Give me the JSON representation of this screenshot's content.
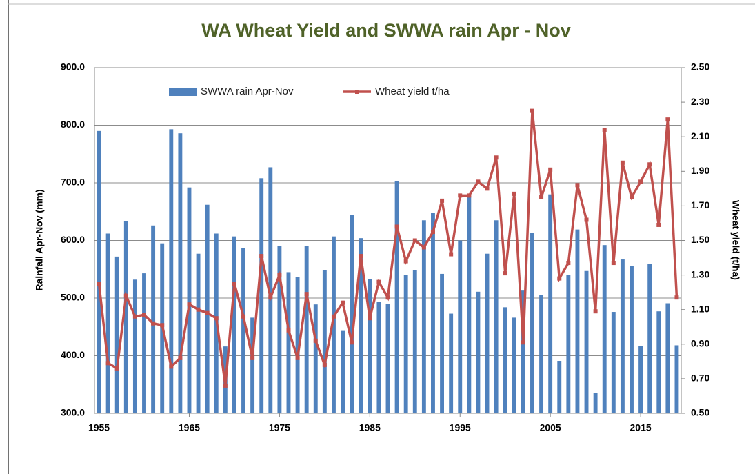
{
  "chart_data": {
    "type": "bar_line",
    "title": "WA Wheat Yield and SWWA rain Apr - Nov",
    "y_label": "Rainfall Apr-Nov (mm)",
    "y2_label": "Wheat yield (t/ha)",
    "x": [
      1955,
      1956,
      1957,
      1958,
      1959,
      1960,
      1961,
      1962,
      1963,
      1964,
      1965,
      1966,
      1967,
      1968,
      1969,
      1970,
      1971,
      1972,
      1973,
      1974,
      1975,
      1976,
      1977,
      1978,
      1979,
      1980,
      1981,
      1982,
      1983,
      1984,
      1985,
      1986,
      1987,
      1988,
      1989,
      1990,
      1991,
      1992,
      1993,
      1994,
      1995,
      1996,
      1997,
      1998,
      1999,
      2000,
      2001,
      2002,
      2003,
      2004,
      2005,
      2006,
      2007,
      2008,
      2009,
      2010,
      2011,
      2012,
      2013,
      2014,
      2015,
      2016,
      2017,
      2018,
      2019
    ],
    "xlim": [
      1954.5,
      2019.5
    ],
    "xticks": [
      1955,
      1965,
      1975,
      1985,
      1995,
      2005,
      2015
    ],
    "ylim": [
      300,
      900
    ],
    "yticks": [
      {
        "value": 300,
        "label": "300.0"
      },
      {
        "value": 400,
        "label": "400.0"
      },
      {
        "value": 500,
        "label": "500.0"
      },
      {
        "value": 600,
        "label": "600.0"
      },
      {
        "value": 700,
        "label": "700.0"
      },
      {
        "value": 800,
        "label": "800.0"
      },
      {
        "value": 900,
        "label": "900.0"
      }
    ],
    "y2lim": [
      0.5,
      2.5
    ],
    "y2ticks": [
      {
        "value": 0.5,
        "label": "0.50"
      },
      {
        "value": 0.7,
        "label": "0.70"
      },
      {
        "value": 0.9,
        "label": "0.90"
      },
      {
        "value": 1.1,
        "label": "1.10"
      },
      {
        "value": 1.3,
        "label": "1.30"
      },
      {
        "value": 1.5,
        "label": "1.50"
      },
      {
        "value": 1.7,
        "label": "1.70"
      },
      {
        "value": 1.9,
        "label": "1.90"
      },
      {
        "value": 2.1,
        "label": "2.10"
      },
      {
        "value": 2.3,
        "label": "2.30"
      },
      {
        "value": 2.5,
        "label": "2.50"
      }
    ],
    "grid": true,
    "legend": "top",
    "series": [
      {
        "name": "SWWA rain Apr-Nov",
        "type": "bar",
        "color": "#4f81bd",
        "values": [
          790,
          612,
          572,
          633,
          532,
          543,
          626,
          595,
          793,
          786,
          692,
          577,
          662,
          612,
          416,
          607,
          587,
          466,
          708,
          727,
          590,
          545,
          537,
          591,
          489,
          549,
          607,
          443,
          644,
          604,
          533,
          493,
          490,
          703,
          540,
          548,
          635,
          648,
          542,
          473,
          600,
          678,
          511,
          577,
          635,
          484,
          466,
          513,
          613,
          505,
          680,
          391,
          540,
          619,
          547,
          335,
          592,
          476,
          567,
          556,
          417,
          559,
          477,
          491,
          418
        ]
      },
      {
        "name": "Wheat yield t/ha",
        "type": "line",
        "axis": "y2",
        "color": "#c0504d",
        "values": [
          1.25,
          0.79,
          0.76,
          1.18,
          1.06,
          1.07,
          1.02,
          1.01,
          0.77,
          0.82,
          1.13,
          1.1,
          1.08,
          1.05,
          0.66,
          1.25,
          1.06,
          0.82,
          1.41,
          1.17,
          1.3,
          0.98,
          0.82,
          1.19,
          0.92,
          0.78,
          1.06,
          1.14,
          0.91,
          1.41,
          1.05,
          1.26,
          1.17,
          1.58,
          1.38,
          1.5,
          1.46,
          1.55,
          1.73,
          1.42,
          1.76,
          1.76,
          1.84,
          1.8,
          1.98,
          1.31,
          1.77,
          0.91,
          2.25,
          1.75,
          1.91,
          1.28,
          1.37,
          1.82,
          1.62,
          1.09,
          2.14,
          1.37,
          1.95,
          1.75,
          1.84,
          1.94,
          1.59,
          2.2,
          1.17
        ]
      }
    ]
  }
}
